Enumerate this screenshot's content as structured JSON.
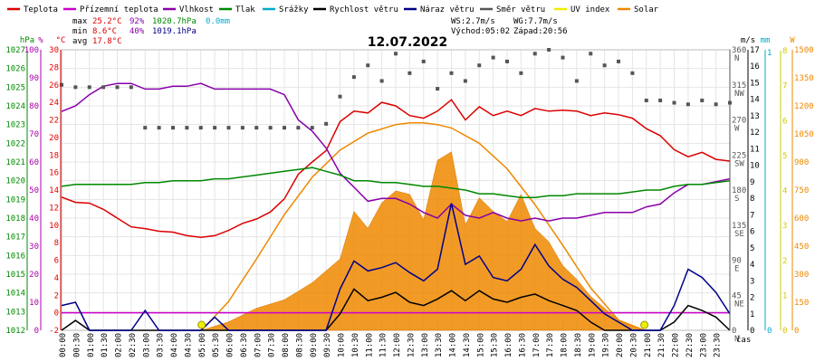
{
  "chart_data": {
    "type": "line",
    "title": "12.07.2022",
    "legend": [
      {
        "label": "Teplota",
        "color": "#dd0000"
      },
      {
        "label": "Přízemní teplota",
        "color": "#cc00cc"
      },
      {
        "label": "Vlhkost",
        "color": "#8800aa"
      },
      {
        "label": "Tlak",
        "color": "#008800"
      },
      {
        "label": "Srážky",
        "color": "#00aacc"
      },
      {
        "label": "Rychlost větru",
        "color": "#000000"
      },
      {
        "label": "Náraz větru",
        "color": "#000088"
      },
      {
        "label": "Směr větru",
        "color": "#555555"
      },
      {
        "label": "UV index",
        "color": "#eeee00"
      },
      {
        "label": "Solar",
        "color": "#ee8800"
      }
    ],
    "stats": {
      "max_label": "max",
      "min_label": "min",
      "avg_label": "avg",
      "max_temp": "25.2°C",
      "max_hum": "92%",
      "max_press": "1020.7hPa",
      "max_rain": "0.0mm",
      "min_temp": "8.6°C",
      "min_hum": "40%",
      "min_press": "1019.1hPa",
      "avg_temp": "17.8°C",
      "ws": "WS:2.7m/s",
      "wg": "WG:7.7m/s",
      "sunrise": "Východ:05:02",
      "sunset": "Západ:20:56"
    },
    "x_axis_label": "čas",
    "x_ticks": [
      "00:00",
      "00:30",
      "01:00",
      "01:30",
      "02:00",
      "02:30",
      "03:00",
      "03:30",
      "04:00",
      "04:30",
      "05:00",
      "05:30",
      "06:00",
      "06:30",
      "07:00",
      "07:30",
      "08:00",
      "08:30",
      "09:00",
      "09:30",
      "10:00",
      "10:30",
      "11:00",
      "11:30",
      "12:00",
      "12:30",
      "13:00",
      "13:30",
      "14:00",
      "14:30",
      "15:00",
      "15:30",
      "16:00",
      "16:30",
      "17:00",
      "17:30",
      "18:00",
      "18:30",
      "19:00",
      "19:30",
      "20:00",
      "20:30",
      "21:00",
      "21:30",
      "22:00",
      "22:30",
      "23:00",
      "23:30"
    ],
    "axes": {
      "hpa": {
        "unit": "hPa",
        "color": "#008800",
        "ticks": [
          "1027",
          "1026",
          "1025",
          "1024",
          "1023",
          "1022",
          "1021",
          "1020",
          "1019",
          "1018",
          "1017",
          "1016",
          "1015",
          "1014",
          "1013",
          "1012"
        ],
        "range": [
          1012,
          1027
        ]
      },
      "pct": {
        "unit": "%",
        "color": "#aa00aa",
        "ticks": [
          "100",
          "90",
          "80",
          "70",
          "60",
          "50",
          "40",
          "30",
          "20",
          "10",
          "0"
        ],
        "range": [
          0,
          100
        ]
      },
      "temp": {
        "unit": "°C",
        "color": "#dd0000",
        "ticks": [
          "30",
          "28",
          "26",
          "24",
          "22",
          "20",
          "18",
          "16",
          "14",
          "12",
          "10",
          "8",
          "6",
          "4",
          "2",
          "0",
          "-2"
        ],
        "range": [
          -2,
          30
        ]
      },
      "ms": {
        "unit": "m/s",
        "color": "#000000",
        "ticks": [
          "17",
          "16",
          "15",
          "14",
          "13",
          "12",
          "11",
          "10",
          "9",
          "8",
          "7",
          "6",
          "5",
          "4",
          "3",
          "2",
          "1",
          "0"
        ],
        "range": [
          0,
          17
        ]
      },
      "dir": {
        "color": "#555555",
        "ticks": [
          {
            "deg": "360",
            "dir": "N"
          },
          {
            "deg": "315",
            "dir": "NW"
          },
          {
            "deg": "270",
            "dir": "W"
          },
          {
            "deg": "225",
            "dir": "SW"
          },
          {
            "deg": "180",
            "dir": "S"
          },
          {
            "deg": "135",
            "dir": "SE"
          },
          {
            "deg": "90",
            "dir": "E"
          },
          {
            "deg": "45",
            "dir": "NE"
          },
          {
            "deg": "0",
            "dir": "N"
          }
        ],
        "range": [
          0,
          360
        ]
      },
      "mm": {
        "unit": "mm",
        "color": "#00aacc",
        "ticks": [
          "1",
          "0"
        ],
        "range": [
          0,
          1
        ]
      },
      "uv": {
        "unit": "",
        "color": "#cccc00",
        "ticks": [
          "8",
          "7",
          "6",
          "5",
          "4",
          "3",
          "2",
          "1",
          "0"
        ],
        "range": [
          0,
          8
        ]
      },
      "solar": {
        "unit": "W",
        "color": "#ee8800",
        "ticks": [
          "1500",
          "1350",
          "1200",
          "1050",
          "900",
          "750",
          "600",
          "450",
          "300",
          "150",
          "0"
        ],
        "range": [
          0,
          1650
        ]
      }
    },
    "series": [
      {
        "name": "Teplota",
        "axis": "temp",
        "color": "#dd0000",
        "x": [
          0,
          0.5,
          1,
          1.5,
          2,
          2.5,
          3,
          3.5,
          4,
          4.5,
          5,
          5.5,
          6,
          6.5,
          7,
          7.5,
          8,
          8.5,
          9,
          9.5,
          10,
          10.5,
          11,
          11.5,
          12,
          12.5,
          13,
          13.5,
          14,
          14.5,
          15,
          15.5,
          16,
          16.5,
          17,
          17.5,
          18,
          18.5,
          19,
          19.5,
          20,
          20.5,
          21,
          21.5,
          22,
          22.5,
          23,
          23.5,
          24
        ],
        "values": [
          13.2,
          12.6,
          12.5,
          11.8,
          10.8,
          9.8,
          9.6,
          9.3,
          9.2,
          8.8,
          8.6,
          8.8,
          9.4,
          10.2,
          10.7,
          11.5,
          13.0,
          15.8,
          17.2,
          18.5,
          21.8,
          23.0,
          22.8,
          24.0,
          23.6,
          22.5,
          22.2,
          23.0,
          24.3,
          22.0,
          23.5,
          22.5,
          23.0,
          22.5,
          23.3,
          23.0,
          23.1,
          23.0,
          22.5,
          22.8,
          22.6,
          22.2,
          21.0,
          20.2,
          18.6,
          17.8,
          18.3,
          17.5,
          17.3
        ]
      },
      {
        "name": "Přízemní teplota",
        "axis": "temp",
        "color": "#cc00cc",
        "x": [
          0,
          24
        ],
        "values": [
          0.0,
          0.0
        ]
      },
      {
        "name": "Vlhkost",
        "axis": "pct",
        "color": "#8800aa",
        "x": [
          0,
          0.5,
          1,
          1.5,
          2,
          2.5,
          3,
          3.5,
          4,
          4.5,
          5,
          5.5,
          6,
          6.5,
          7,
          7.5,
          8,
          8.5,
          9,
          9.5,
          10,
          10.5,
          11,
          11.5,
          12,
          12.5,
          13,
          13.5,
          14,
          14.5,
          15,
          15.5,
          16,
          16.5,
          17,
          17.5,
          18,
          18.5,
          19,
          19.5,
          20,
          20.5,
          21,
          21.5,
          22,
          22.5,
          23,
          23.5,
          24
        ],
        "values": [
          78,
          80,
          84,
          87,
          88,
          88,
          86,
          86,
          87,
          87,
          88,
          86,
          86,
          86,
          86,
          86,
          84,
          75,
          71,
          65,
          56,
          51,
          46,
          47,
          47,
          45,
          42,
          40,
          45,
          41,
          40,
          42,
          40,
          39,
          40,
          39,
          40,
          40,
          41,
          42,
          42,
          42,
          44,
          45,
          49,
          52,
          52,
          53,
          54
        ]
      },
      {
        "name": "Tlak",
        "axis": "hpa",
        "color": "#008800",
        "x": [
          0,
          0.5,
          1,
          1.5,
          2,
          2.5,
          3,
          3.5,
          4,
          4.5,
          5,
          5.5,
          6,
          6.5,
          7,
          7.5,
          8,
          8.5,
          9,
          9.5,
          10,
          10.5,
          11,
          11.5,
          12,
          12.5,
          13,
          13.5,
          14,
          14.5,
          15,
          15.5,
          16,
          16.5,
          17,
          17.5,
          18,
          18.5,
          19,
          19.5,
          20,
          20.5,
          21,
          21.5,
          22,
          22.5,
          23,
          23.5,
          24
        ],
        "values": [
          1019.7,
          1019.8,
          1019.8,
          1019.8,
          1019.8,
          1019.8,
          1019.9,
          1019.9,
          1020.0,
          1020.0,
          1020.0,
          1020.1,
          1020.1,
          1020.2,
          1020.3,
          1020.4,
          1020.5,
          1020.6,
          1020.7,
          1020.5,
          1020.3,
          1020.0,
          1020.0,
          1019.9,
          1019.9,
          1019.8,
          1019.7,
          1019.7,
          1019.6,
          1019.5,
          1019.3,
          1019.3,
          1019.2,
          1019.1,
          1019.1,
          1019.2,
          1019.2,
          1019.3,
          1019.3,
          1019.3,
          1019.3,
          1019.4,
          1019.5,
          1019.5,
          1019.7,
          1019.8,
          1019.8,
          1019.9,
          1020.0
        ]
      },
      {
        "name": "Rychlost větru",
        "axis": "ms",
        "color": "#000000",
        "x": [
          0,
          0.5,
          1,
          1.5,
          2,
          2.5,
          3,
          3.5,
          4,
          4.5,
          5,
          5.5,
          6,
          6.5,
          7,
          7.5,
          8,
          8.5,
          9,
          9.5,
          10,
          10.5,
          11,
          11.5,
          12,
          12.5,
          13,
          13.5,
          14,
          14.5,
          15,
          15.5,
          16,
          16.5,
          17,
          17.5,
          18,
          18.5,
          19,
          19.5,
          20,
          20.5,
          21,
          21.5,
          22,
          22.5,
          23,
          23.5,
          24
        ],
        "values": [
          0.0,
          0.6,
          0.0,
          0.0,
          0.0,
          0.0,
          0.0,
          0.0,
          0.0,
          0.0,
          0.0,
          0.0,
          0.0,
          0.0,
          0.0,
          0.0,
          0.0,
          0.0,
          0.0,
          0.0,
          1.0,
          2.5,
          1.8,
          2.0,
          2.3,
          1.7,
          1.5,
          1.9,
          2.4,
          1.8,
          2.4,
          1.9,
          1.7,
          2.0,
          2.2,
          1.8,
          1.5,
          1.2,
          0.5,
          0.0,
          0.0,
          0.0,
          0.0,
          0.0,
          0.5,
          1.5,
          1.2,
          0.8,
          0.0
        ]
      },
      {
        "name": "Náraz větru",
        "axis": "ms",
        "color": "#000088",
        "x": [
          0,
          0.5,
          1,
          1.5,
          2,
          2.5,
          3,
          3.5,
          4,
          4.5,
          5,
          5.5,
          6,
          6.5,
          7,
          7.5,
          8,
          8.5,
          9,
          9.5,
          10,
          10.5,
          11,
          11.5,
          12,
          12.5,
          13,
          13.5,
          14,
          14.5,
          15,
          15.5,
          16,
          16.5,
          17,
          17.5,
          18,
          18.5,
          19,
          19.5,
          20,
          20.5,
          21,
          21.5,
          22,
          22.5,
          23,
          23.5,
          24
        ],
        "values": [
          1.5,
          1.7,
          0.0,
          0.0,
          0.0,
          0.0,
          1.2,
          0.0,
          0.0,
          0.0,
          0.0,
          0.8,
          0.0,
          0.0,
          0.0,
          0.0,
          0.0,
          0.0,
          0.0,
          0.0,
          2.5,
          4.2,
          3.6,
          3.8,
          4.1,
          3.5,
          3.0,
          3.7,
          7.7,
          4.0,
          4.5,
          3.2,
          3.0,
          3.7,
          5.2,
          3.9,
          3.1,
          2.6,
          1.8,
          1.0,
          0.5,
          0.0,
          0.0,
          0.0,
          1.5,
          3.7,
          3.2,
          2.3,
          1.0
        ]
      },
      {
        "name": "Směr větru",
        "axis": "dir",
        "color": "#555555",
        "x": [
          0,
          0.5,
          1,
          1.5,
          2,
          2.5,
          3,
          3.5,
          4,
          4.5,
          5,
          5.5,
          6,
          6.5,
          7,
          7.5,
          8,
          8.5,
          9,
          9.5,
          10,
          10.5,
          11,
          11.5,
          12,
          12.5,
          13,
          13.5,
          14,
          14.5,
          15,
          15.5,
          16,
          16.5,
          17,
          17.5,
          18,
          18.5,
          19,
          19.5,
          20,
          20.5,
          21,
          21.5,
          22,
          22.5,
          23,
          23.5,
          24
        ],
        "values": [
          315,
          312,
          312,
          312,
          312,
          312,
          260,
          260,
          260,
          260,
          260,
          260,
          260,
          260,
          260,
          260,
          260,
          260,
          260,
          265,
          300,
          325,
          340,
          320,
          355,
          330,
          345,
          310,
          330,
          320,
          340,
          350,
          345,
          330,
          355,
          360,
          350,
          320,
          355,
          340,
          345,
          330,
          295,
          295,
          292,
          290,
          295,
          290,
          292
        ]
      },
      {
        "name": "UV index",
        "axis": "uv",
        "color": "#eeee00",
        "x": [
          5.03,
          20.93
        ],
        "values": [
          0,
          0
        ]
      },
      {
        "name": "Solar",
        "axis": "solar",
        "color": "#ee8800",
        "x": [
          5.03,
          6,
          7,
          8,
          9,
          10,
          10.5,
          11,
          11.5,
          12,
          12.5,
          13,
          13.5,
          14,
          14.5,
          15,
          15.5,
          16,
          16.5,
          17,
          17.5,
          18,
          18.5,
          19,
          20,
          20.93
        ],
        "values": [
          0,
          50,
          130,
          180,
          280,
          420,
          700,
          600,
          750,
          820,
          800,
          650,
          1000,
          1050,
          620,
          780,
          700,
          640,
          800,
          600,
          520,
          380,
          300,
          200,
          60,
          0
        ]
      },
      {
        "name": "Solar max",
        "axis": "solar",
        "color": "#ee8800",
        "x": [
          5.03,
          6,
          7,
          8,
          9,
          10,
          11,
          12,
          12.5,
          13,
          13.5,
          14,
          15,
          16,
          17,
          18,
          19,
          20,
          20.93
        ],
        "values": [
          0,
          170,
          420,
          680,
          900,
          1060,
          1160,
          1210,
          1220,
          1220,
          1210,
          1190,
          1100,
          950,
          740,
          500,
          250,
          60,
          0
        ]
      }
    ]
  }
}
